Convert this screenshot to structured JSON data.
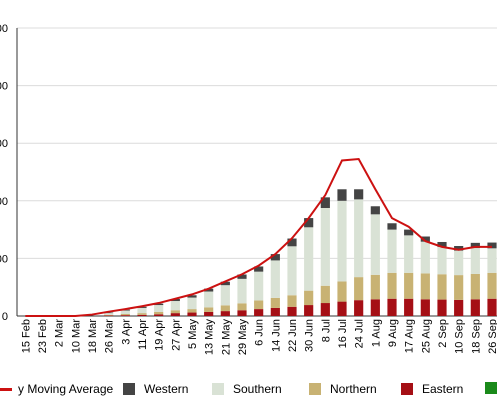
{
  "chart_data": {
    "type": "bar",
    "stacked": true,
    "overlay": "line",
    "x_tick_labels": [
      "15 Feb",
      "23 Feb",
      "2 Mar",
      "10 Mar",
      "18 Mar",
      "26 Mar",
      "3 Apr",
      "11 Apr",
      "19 Apr",
      "27 Apr",
      "5 May",
      "13 May",
      "21 May",
      "29 May",
      "6 Jun",
      "14 Jun",
      "22 Jun",
      "30 Jun",
      "8 Jul",
      "16 Jul",
      "24 Jul",
      "1 Aug",
      "9 Aug",
      "17 Aug",
      "25 Aug",
      "2 Sep",
      "10 Sep",
      "18 Sep",
      "26 Sep"
    ],
    "y_tick_labels": [
      "0",
      "00",
      "00",
      "00",
      "00",
      "00"
    ],
    "y_tick_fractions": [
      0,
      0.2,
      0.4,
      0.6,
      0.8,
      1.0
    ],
    "ylim_fraction": [
      0,
      1
    ],
    "grid": true,
    "legend_position": "bottom",
    "series": [
      {
        "name": "Eastern",
        "color": "#a50f15",
        "values": [
          0,
          0,
          0,
          0,
          0,
          0.002,
          0.003,
          0.004,
          0.006,
          0.01,
          0.012,
          0.014,
          0.017,
          0.02,
          0.024,
          0.028,
          0.032,
          0.038,
          0.045,
          0.05,
          0.055,
          0.058,
          0.06,
          0.06,
          0.058,
          0.057,
          0.056,
          0.058,
          0.06
        ]
      },
      {
        "name": "Northern",
        "color": "#c8b273",
        "values": [
          0,
          0,
          0,
          0,
          0,
          0.002,
          0.004,
          0.006,
          0.008,
          0.01,
          0.012,
          0.016,
          0.02,
          0.024,
          0.03,
          0.035,
          0.04,
          0.05,
          0.06,
          0.07,
          0.08,
          0.085,
          0.09,
          0.09,
          0.09,
          0.088,
          0.086,
          0.088,
          0.09
        ]
      },
      {
        "name": "Southern",
        "color": "#d9e2d5",
        "values": [
          0,
          0,
          0,
          0,
          0,
          0.006,
          0.012,
          0.018,
          0.024,
          0.032,
          0.04,
          0.055,
          0.07,
          0.085,
          0.1,
          0.13,
          0.17,
          0.22,
          0.27,
          0.28,
          0.27,
          0.21,
          0.15,
          0.13,
          0.11,
          0.095,
          0.085,
          0.09,
          0.085
        ]
      },
      {
        "name": "Western",
        "color": "#444444",
        "values": [
          0,
          0,
          0,
          0,
          0,
          0.002,
          0.003,
          0.004,
          0.005,
          0.007,
          0.008,
          0.01,
          0.012,
          0.015,
          0.018,
          0.022,
          0.027,
          0.032,
          0.037,
          0.04,
          0.035,
          0.028,
          0.022,
          0.02,
          0.018,
          0.017,
          0.016,
          0.018,
          0.02
        ]
      }
    ],
    "moving_average": {
      "color": "#cc1111",
      "values": [
        0,
        0,
        0,
        0,
        0.005,
        0.015,
        0.024,
        0.034,
        0.045,
        0.06,
        0.075,
        0.095,
        0.12,
        0.145,
        0.175,
        0.215,
        0.27,
        0.34,
        0.42,
        0.54,
        0.545,
        0.44,
        0.34,
        0.31,
        0.26,
        0.24,
        0.23,
        0.24,
        0.24
      ]
    },
    "legend": [
      {
        "label": "y Moving Average",
        "kind": "line",
        "color": "#cc1111"
      },
      {
        "label": "Western",
        "kind": "box",
        "color": "#444444"
      },
      {
        "label": "Southern",
        "kind": "box",
        "color": "#d9e2d5"
      },
      {
        "label": "Northern",
        "kind": "box",
        "color": "#c8b273"
      },
      {
        "label": "Eastern",
        "kind": "box",
        "color": "#a50f15"
      },
      {
        "label": "",
        "kind": "box",
        "color": "#1a8a1a"
      }
    ]
  }
}
